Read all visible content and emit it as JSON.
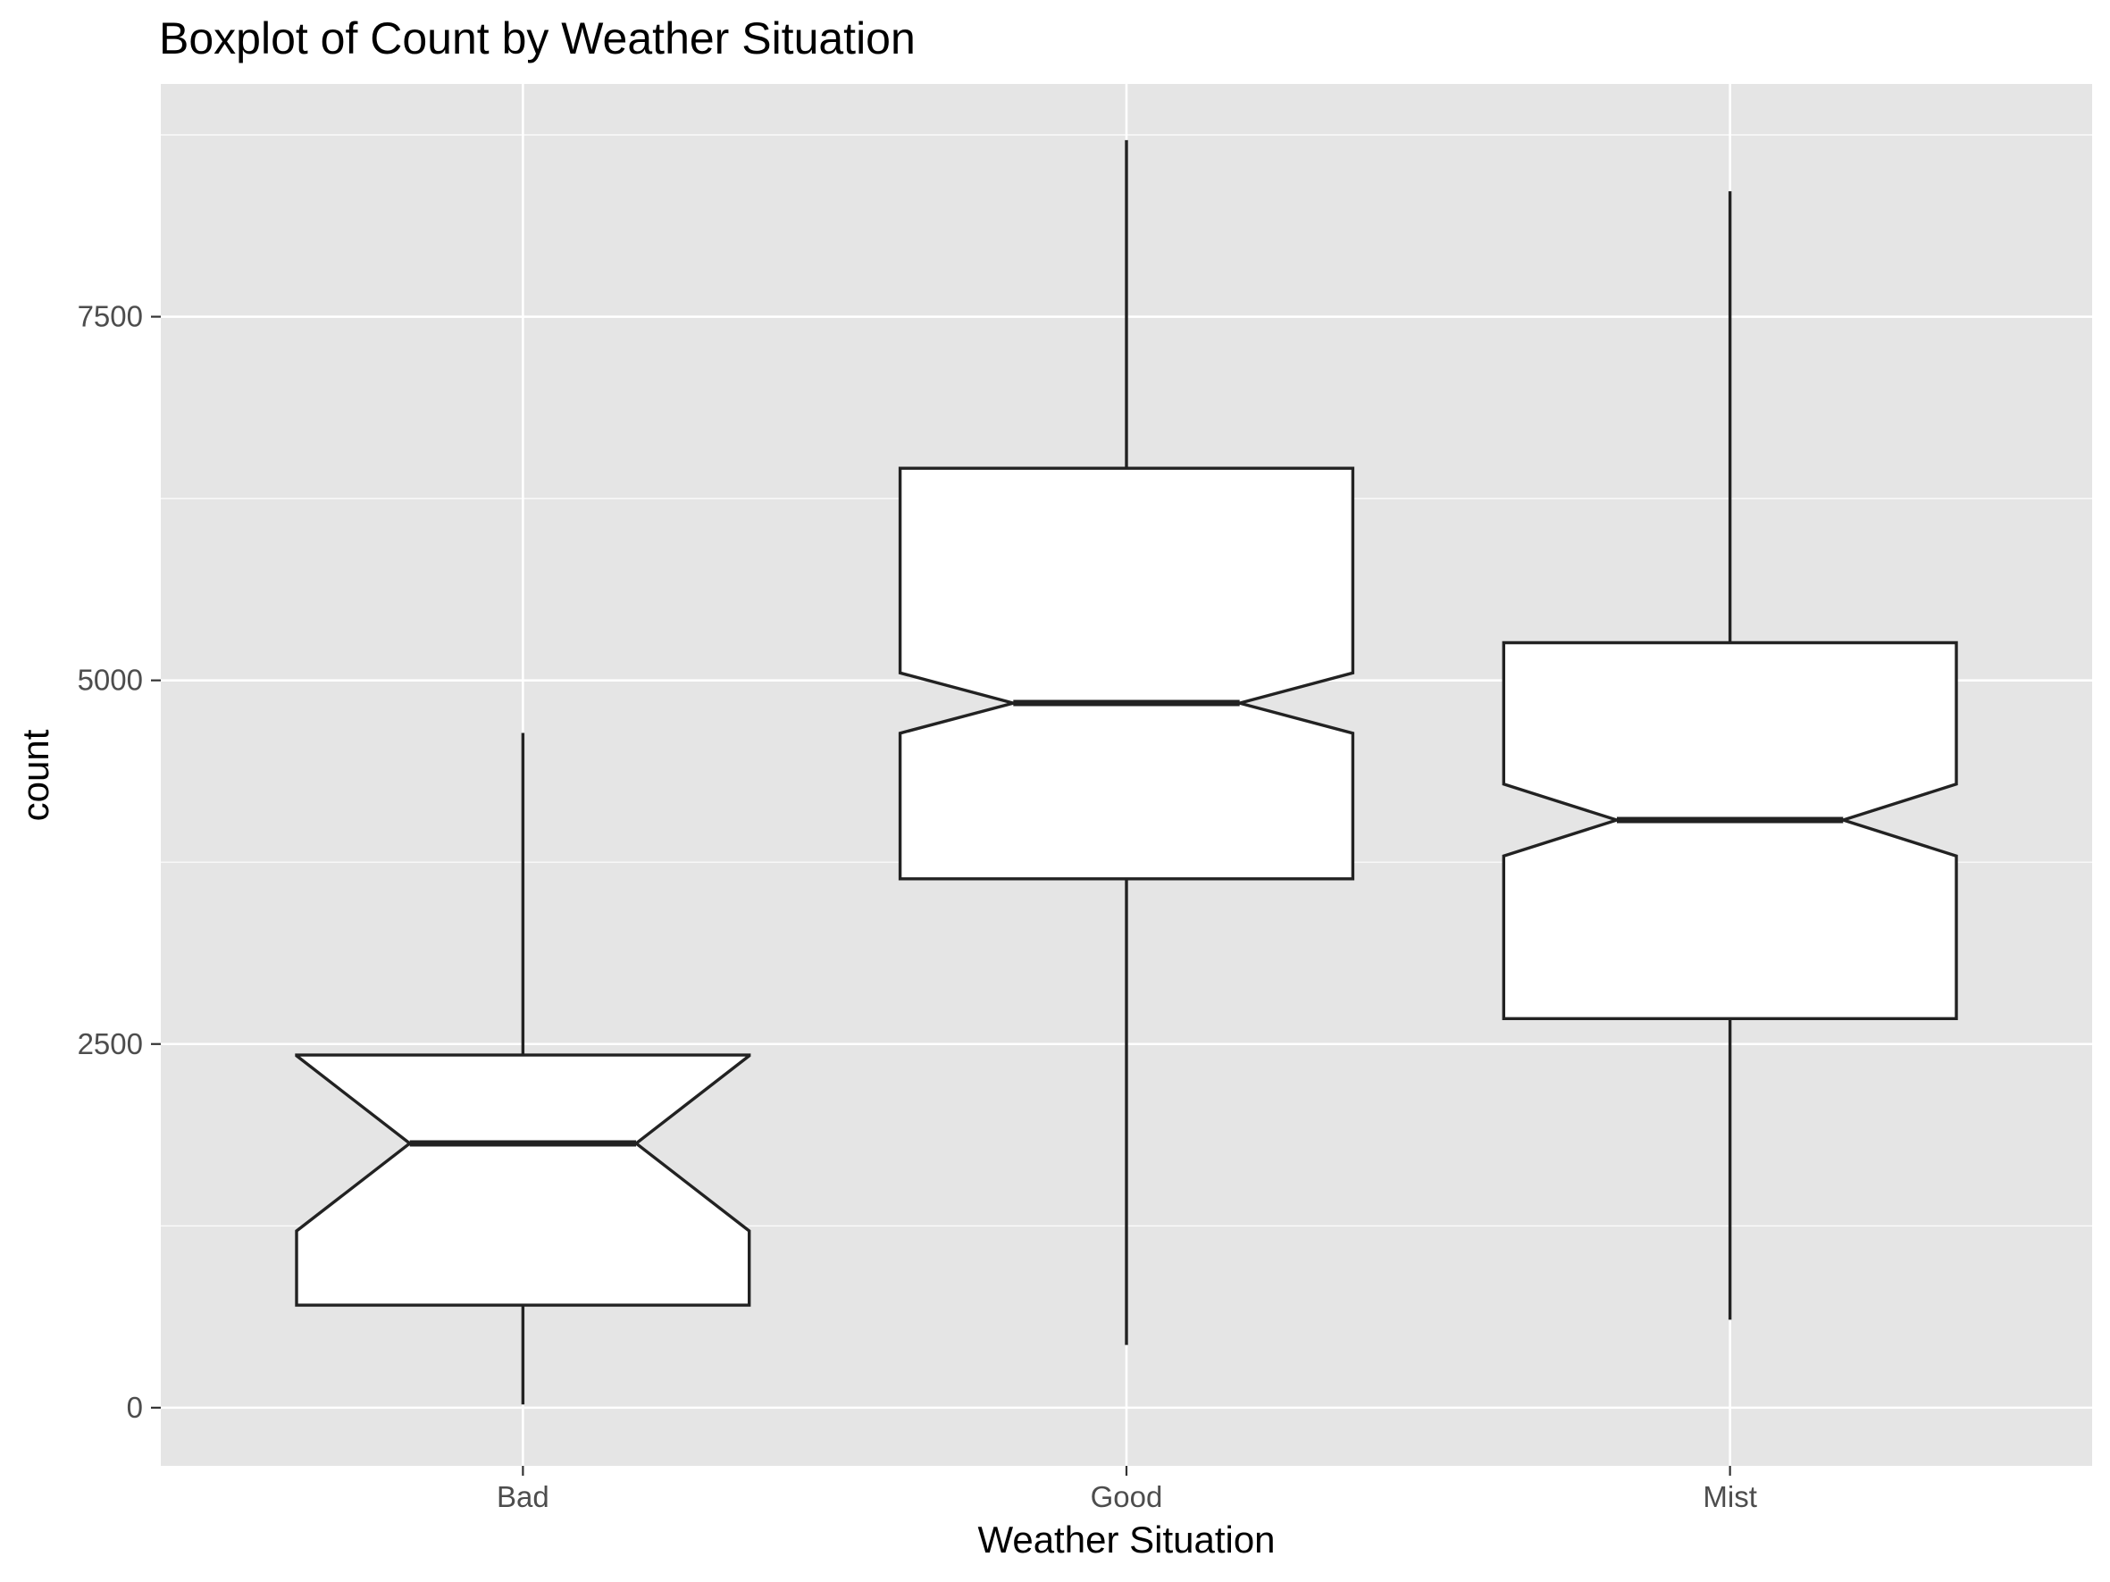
{
  "chart_data": {
    "type": "boxplot",
    "title": "Boxplot of Count by Weather Situation",
    "xlabel": "Weather Situation",
    "ylabel": "count",
    "categories": [
      "Bad",
      "Good",
      "Mist"
    ],
    "ylim": [
      -400,
      9100
    ],
    "yticks": [
      0,
      2500,
      5000,
      7500
    ],
    "ytick_labels": [
      "0",
      "2500",
      "5000",
      "7500"
    ],
    "notched": true,
    "grid": true,
    "boxes": [
      {
        "category": "Bad",
        "whisker_low": 22,
        "q1": 705,
        "median": 1817,
        "q3": 2424,
        "whisker_high": 4639,
        "notch_low": 1215,
        "notch_high": 2419
      },
      {
        "category": "Good",
        "whisker_low": 431,
        "q1": 3636,
        "median": 4844,
        "q3": 6458,
        "whisker_high": 8714,
        "notch_low": 4637,
        "notch_high": 5051
      },
      {
        "category": "Mist",
        "whisker_low": 605,
        "q1": 2675,
        "median": 4040,
        "q3": 5259,
        "whisker_high": 8362,
        "notch_low": 3793,
        "notch_high": 4287
      }
    ],
    "colors": {
      "panel": "#e5e5e5",
      "grid": "#ffffff",
      "box_fill": "#ffffff",
      "box_line": "#222222",
      "tick_text": "#4d4d4d",
      "tick_mark": "#333333"
    }
  }
}
